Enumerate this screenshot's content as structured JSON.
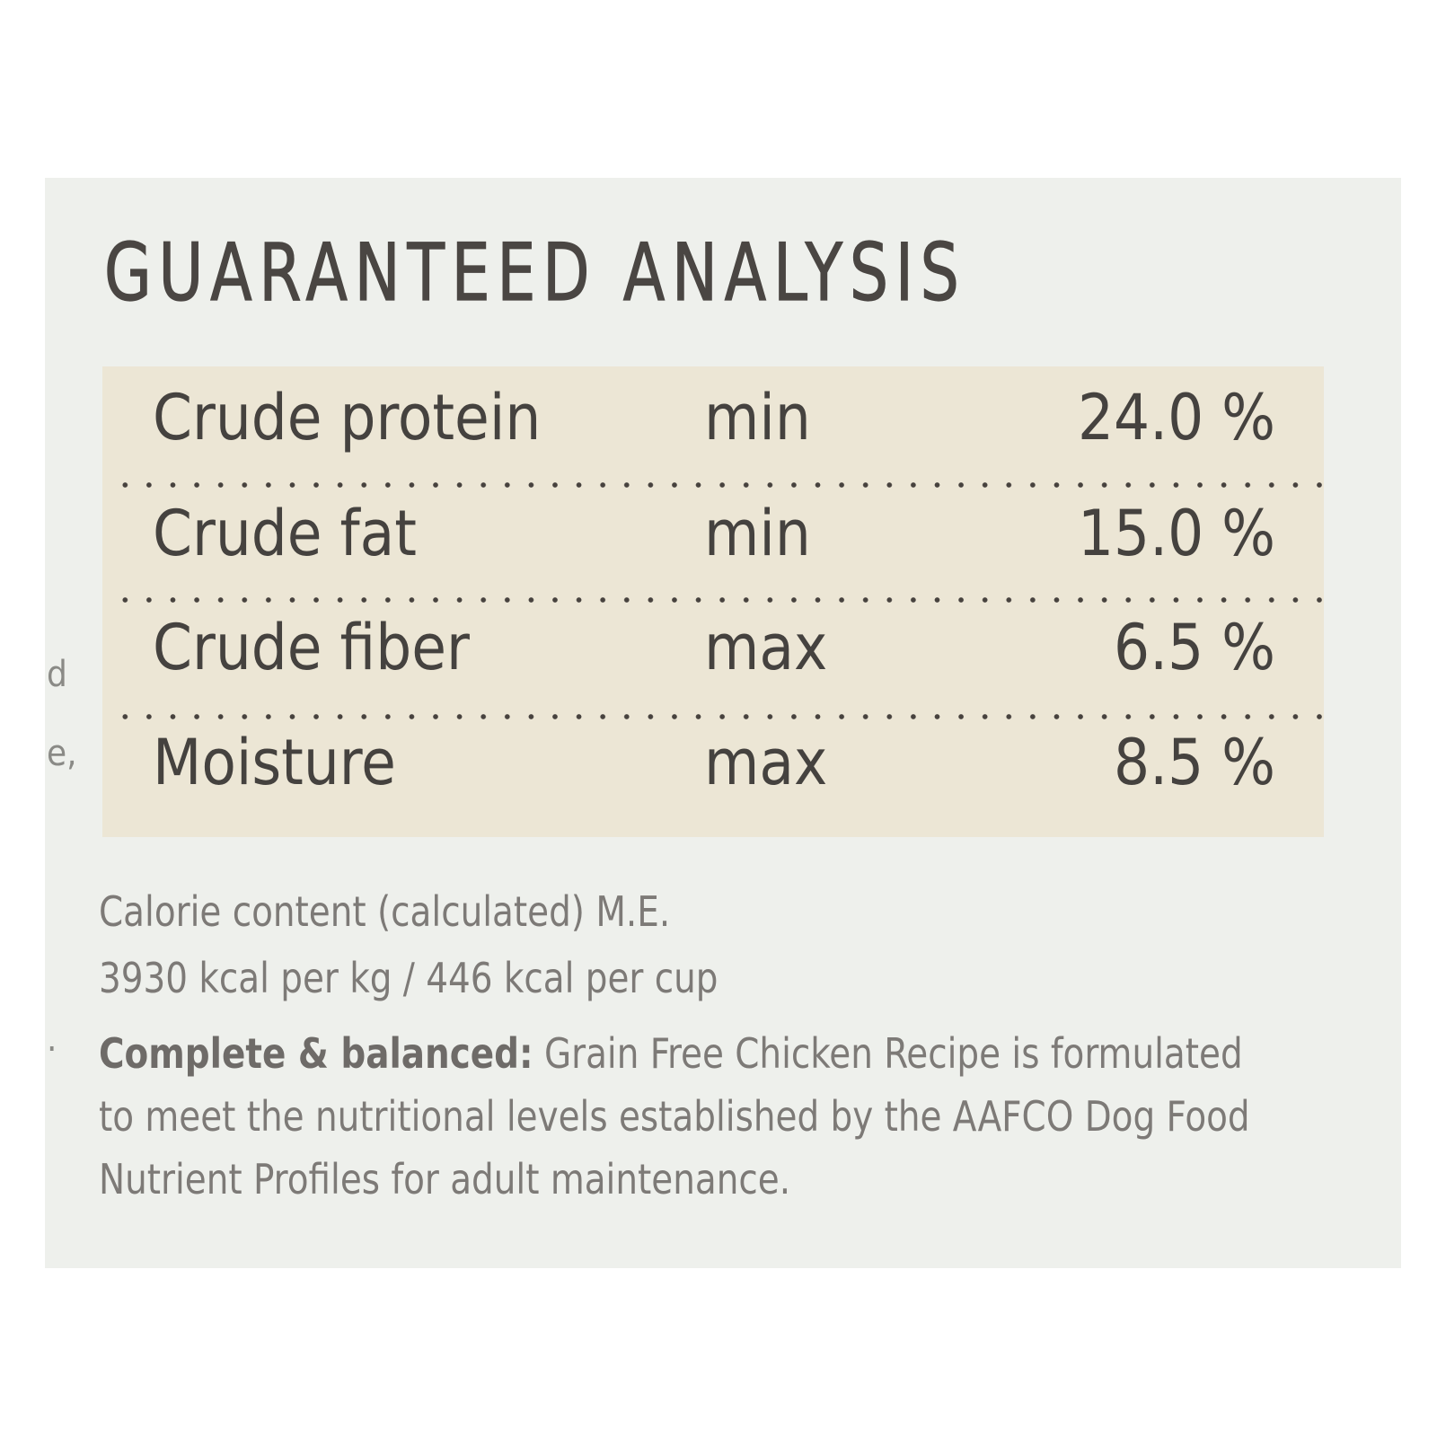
{
  "left_edge_fragments": [
    "d",
    "e,",
    "."
  ],
  "title": "GUARANTEED ANALYSIS",
  "analysis": [
    {
      "nutrient": "Crude protein",
      "qualifier": "min",
      "value": "24.0 %"
    },
    {
      "nutrient": "Crude fat",
      "qualifier": "min",
      "value": "15.0 %"
    },
    {
      "nutrient": "Crude fiber",
      "qualifier": "max",
      "value": "6.5 %"
    },
    {
      "nutrient": "Moisture",
      "qualifier": "max",
      "value": "8.5 %"
    }
  ],
  "calorie": {
    "line1": "Calorie content (calculated) M.E.",
    "line2": "3930 kcal per kg / 446 kcal per cup"
  },
  "statement": {
    "lead": "Complete & balanced:",
    "body": "Grain Free Chicken Recipe is formulated to meet the nutritional levels established by the AAFCO Dog Food Nutrient Profiles for adult maintenance."
  },
  "colors": {
    "panel": "#eef0ec",
    "table_background": "#ece6d5",
    "title_text": "#4a4643",
    "table_text": "#45423f",
    "body_text": "#7d7a77"
  }
}
